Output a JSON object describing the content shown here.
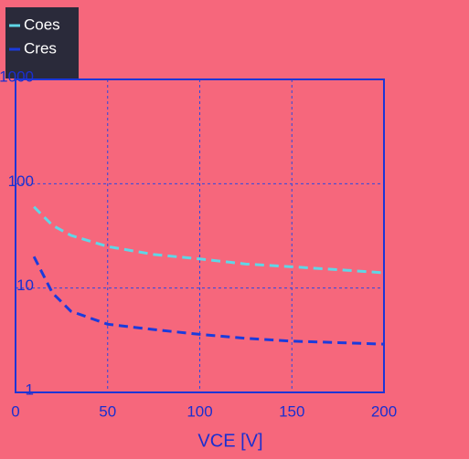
{
  "chart_data": {
    "type": "line",
    "x_label": "VCE [V]",
    "xlim": [
      0,
      200
    ],
    "xticks": [
      0,
      50,
      100,
      150,
      200
    ],
    "ylim": [
      1,
      1000
    ],
    "yticks": [
      1,
      10,
      100,
      1000
    ],
    "log_y": true,
    "grid": true,
    "legend": "top-left",
    "x": [
      10,
      20,
      30,
      50,
      75,
      100,
      125,
      150,
      175,
      200
    ],
    "series": [
      {
        "name": "Coes",
        "color": "#5fd6e6",
        "values": [
          60,
          40,
          32,
          25,
          21,
          19,
          17,
          16,
          15,
          14
        ]
      },
      {
        "name": "Cres",
        "color": "#1b3bdc",
        "values": [
          20,
          9,
          6,
          4.5,
          4,
          3.6,
          3.3,
          3.1,
          3,
          2.9
        ]
      }
    ]
  }
}
